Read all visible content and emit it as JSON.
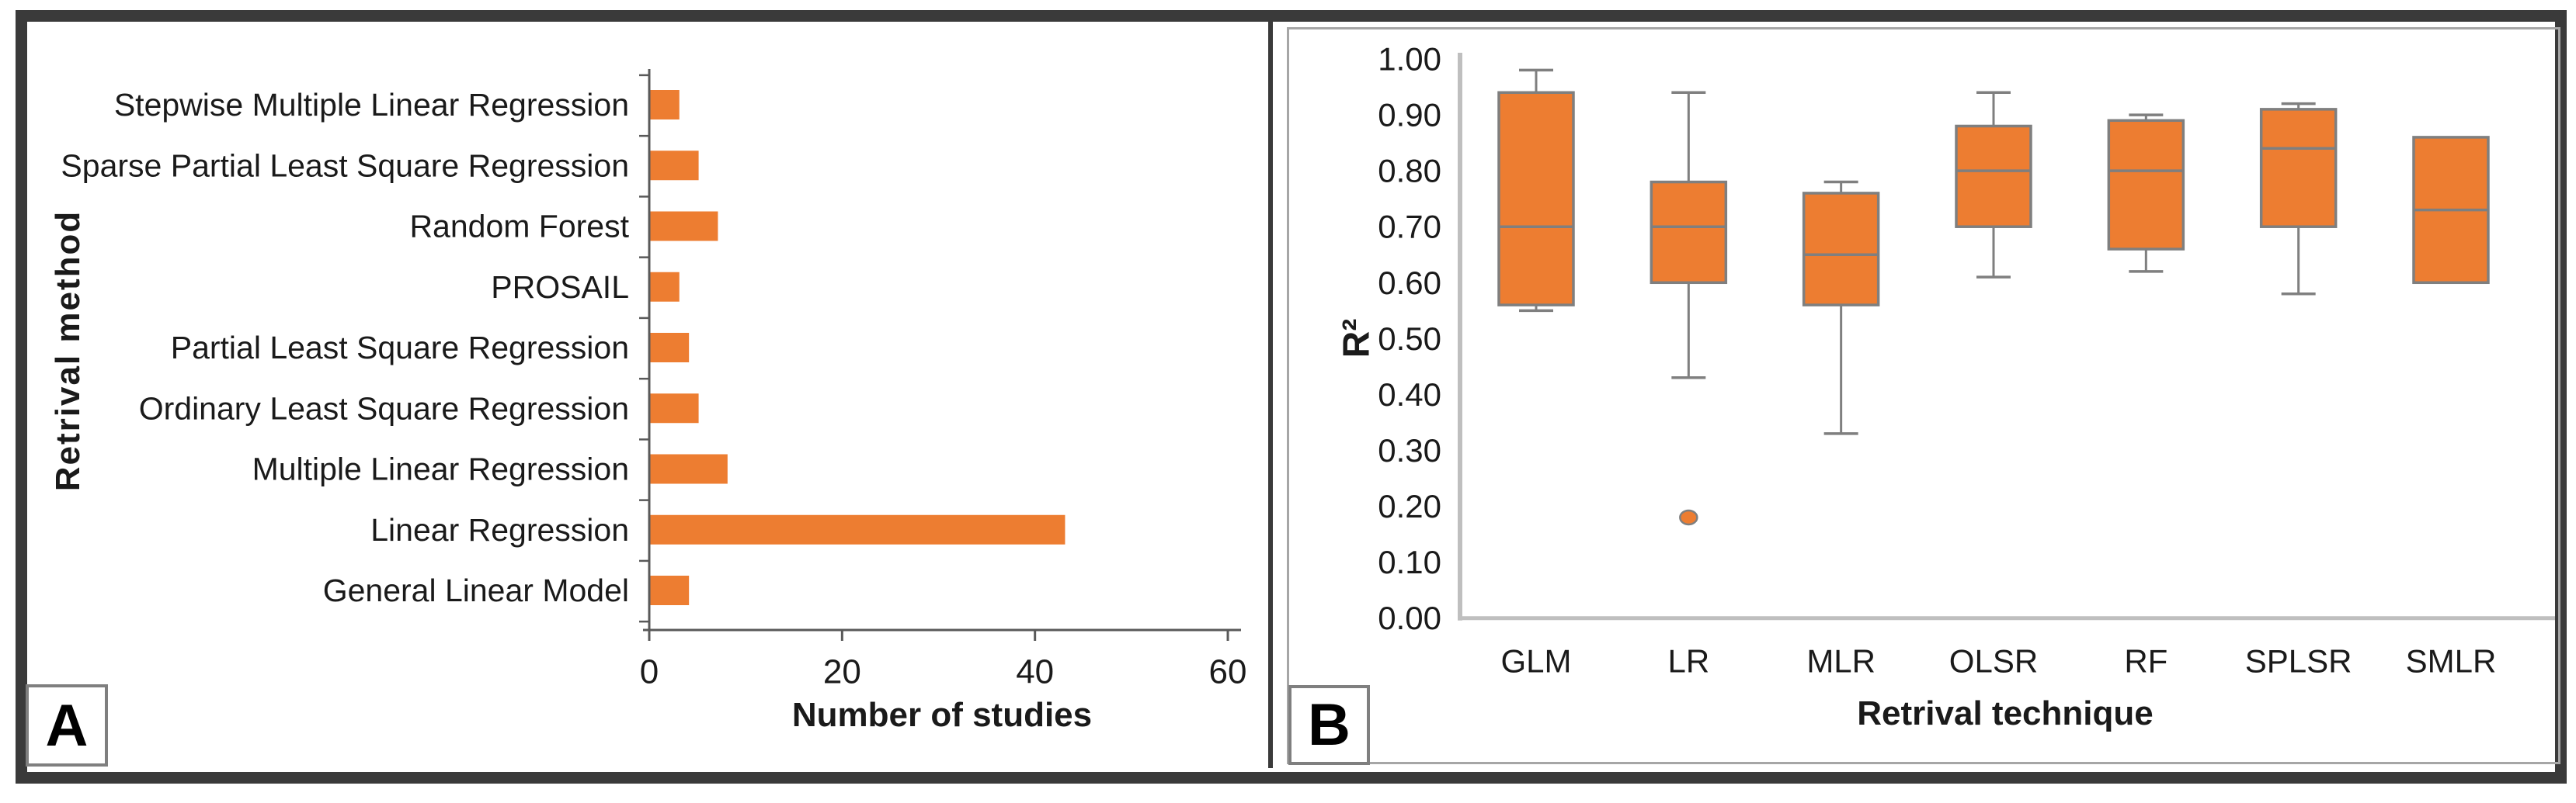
{
  "figure": {
    "panel_a_label": "A",
    "panel_b_label": "B",
    "colors": {
      "bar_fill": "#ED7D31",
      "box_fill": "#ED7D31",
      "box_border": "#7F7F7F",
      "axis_dark": "#595959",
      "axis_light": "#BFBFBF",
      "text": "#1A1A1A",
      "frame_dark": "#3A3A3A",
      "panel_border_gray": "#A6A6A6"
    }
  },
  "panel_a": {
    "chart_data": {
      "type": "bar",
      "orientation": "horizontal",
      "title": "",
      "xlabel": "Number of studies",
      "ylabel": "Retrival method",
      "categories": [
        "Stepwise Multiple Linear Regression",
        "Sparse Partial Least Square Regression",
        "Random Forest",
        "PROSAIL",
        "Partial Least Square Regression",
        "Ordinary Least Square Regression",
        "Multiple Linear Regression",
        "Linear Regression",
        "General Linear Model"
      ],
      "values": [
        3,
        5,
        7,
        3,
        4,
        5,
        8,
        43,
        4
      ],
      "x_ticks": [
        0,
        20,
        40,
        60
      ],
      "x_tick_labels": [
        "0",
        "20",
        "40",
        "60"
      ],
      "xlim": [
        0,
        60
      ],
      "grid": false,
      "legend": "none"
    }
  },
  "panel_b": {
    "chart_data": {
      "type": "boxplot",
      "title": "",
      "xlabel": "Retrival technique",
      "ylabel": "R²",
      "categories": [
        "GLM",
        "LR",
        "MLR",
        "OLSR",
        "RF",
        "SPLSR",
        "SMLR"
      ],
      "ylim": [
        0.0,
        1.0
      ],
      "y_tick_step": 0.1,
      "y_tick_labels": [
        "1.00",
        "0.90",
        "0.80",
        "0.70",
        "0.60",
        "0.50",
        "0.40",
        "0.30",
        "0.20",
        "0.10",
        "0.00"
      ],
      "grid": false,
      "legend": "none",
      "series": [
        {
          "name": "GLM",
          "min": 0.55,
          "q1": 0.56,
          "median": 0.7,
          "q3": 0.94,
          "max": 0.98,
          "outliers": []
        },
        {
          "name": "LR",
          "min": 0.43,
          "q1": 0.6,
          "median": 0.7,
          "q3": 0.78,
          "max": 0.94,
          "outliers": [
            0.18
          ]
        },
        {
          "name": "MLR",
          "min": 0.33,
          "q1": 0.56,
          "median": 0.65,
          "q3": 0.76,
          "max": 0.78,
          "outliers": []
        },
        {
          "name": "OLSR",
          "min": 0.61,
          "q1": 0.7,
          "median": 0.8,
          "q3": 0.88,
          "max": 0.94,
          "outliers": []
        },
        {
          "name": "RF",
          "min": 0.62,
          "q1": 0.66,
          "median": 0.8,
          "q3": 0.89,
          "max": 0.9,
          "outliers": []
        },
        {
          "name": "SPLSR",
          "min": 0.58,
          "q1": 0.7,
          "median": 0.84,
          "q3": 0.91,
          "max": 0.92,
          "outliers": []
        },
        {
          "name": "SMLR",
          "min": 0.6,
          "q1": 0.6,
          "median": 0.73,
          "q3": 0.86,
          "max": 0.86,
          "outliers": []
        }
      ]
    }
  }
}
